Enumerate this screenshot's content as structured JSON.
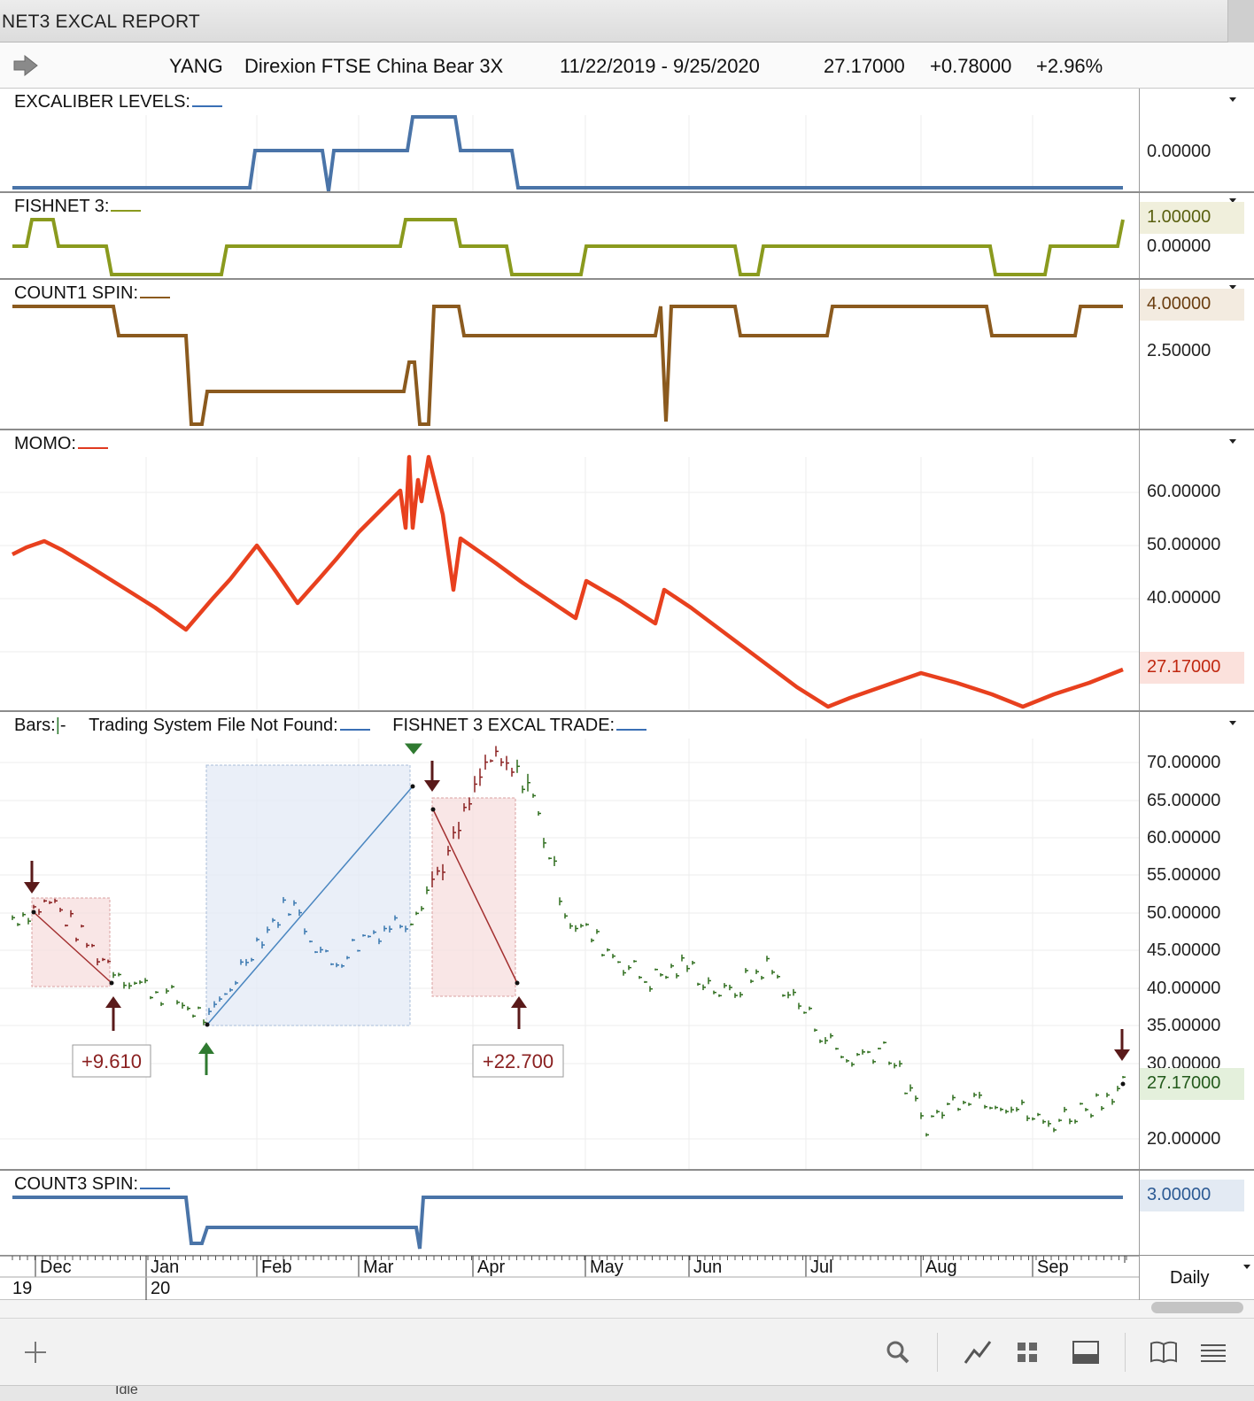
{
  "window": {
    "title": "NET3 EXCAL REPORT"
  },
  "info": {
    "symbol": "YANG",
    "name": "Direxion FTSE China Bear 3X",
    "range": "11/22/2019 - 9/25/2020",
    "last": "27.17000",
    "change": "+0.78000",
    "pct": "+2.96%"
  },
  "panes": {
    "excaliber": {
      "label": "EXCALIBER LEVELS:",
      "ticks": [
        "0.00000"
      ],
      "color": "#4a74a8"
    },
    "fishnet": {
      "label": "FISHNET 3:",
      "ticks": [
        "0.00000"
      ],
      "value_tag": "1.00000",
      "color": "#8a9a1e"
    },
    "count1": {
      "label": "COUNT1 SPIN:",
      "ticks": [
        "2.50000"
      ],
      "value_tag": "4.00000",
      "color": "#8b5a1e"
    },
    "momo": {
      "label": "MOMO:",
      "ticks": [
        "60.00000",
        "50.00000",
        "40.00000"
      ],
      "value_tag": "27.17000",
      "color": "#e8401e"
    },
    "bars": {
      "label_bars": "Bars:",
      "label_tsf": "Trading System File Not Found:",
      "label_trade": "FISHNET 3 EXCAL TRADE:",
      "ticks": [
        "70.00000",
        "65.00000",
        "60.00000",
        "55.00000",
        "50.00000",
        "45.00000",
        "40.00000",
        "35.00000",
        "30.00000",
        "20.00000"
      ],
      "value_tag": "27.17000",
      "trade1_label": "+9.610",
      "trade2_label": "+22.700"
    },
    "count3": {
      "label": "COUNT3 SPIN:",
      "value_tag": "3.00000",
      "color": "#4a74a8"
    }
  },
  "axis": {
    "months": [
      "Dec",
      "Jan",
      "Feb",
      "Mar",
      "Apr",
      "May",
      "Jun",
      "Jul",
      "Aug",
      "Sep"
    ],
    "years": [
      "19",
      "20"
    ],
    "period": "Daily"
  },
  "statusbar": {
    "text": "Idle"
  },
  "toolbar": {
    "icons": [
      "add-icon",
      "search-icon",
      "line-chart-icon",
      "grid-icon",
      "panel-icon",
      "book-icon",
      "menu-icon"
    ]
  },
  "chart_data": [
    {
      "type": "line",
      "title": "EXCALIBER LEVELS:",
      "x": [
        "Nov 22",
        "Jan 21",
        "Feb 17",
        "Mar 12",
        "Mar 24",
        "Apr 7",
        "Sep 25"
      ],
      "series": [
        {
          "values": [
            0,
            0,
            1,
            2,
            1,
            0,
            0
          ]
        }
      ]
    },
    {
      "type": "line",
      "title": "FISHNET 3:",
      "series": [
        {
          "values": [
            0,
            1,
            0,
            -1,
            0,
            1,
            0,
            -1,
            0,
            -1,
            0,
            -1,
            0,
            1
          ]
        }
      ]
    },
    {
      "type": "line",
      "title": "COUNT1 SPIN:",
      "series": [
        {
          "values": [
            4,
            3,
            1,
            2,
            1,
            4,
            3,
            1,
            4,
            3,
            4,
            3,
            4
          ]
        }
      ]
    },
    {
      "type": "line",
      "title": "MOMO:",
      "series": [
        {
          "values": [
            49,
            51,
            46,
            42,
            35,
            50,
            40,
            55,
            66,
            54,
            67,
            52,
            45,
            37,
            44,
            36,
            42,
            31,
            19,
            22,
            25,
            20,
            24,
            27.17
          ]
        }
      ]
    },
    {
      "type": "bar",
      "title": "Bars:",
      "ylim": [
        18,
        72
      ],
      "series": [
        {
          "name": "close",
          "values": [
            48,
            50,
            44,
            40,
            38,
            35,
            44,
            50,
            42,
            46,
            48,
            56,
            68,
            65,
            48,
            44,
            40,
            42,
            38,
            42,
            36,
            30,
            32,
            22,
            26,
            25,
            22,
            24,
            27.17
          ]
        }
      ]
    }
  ]
}
